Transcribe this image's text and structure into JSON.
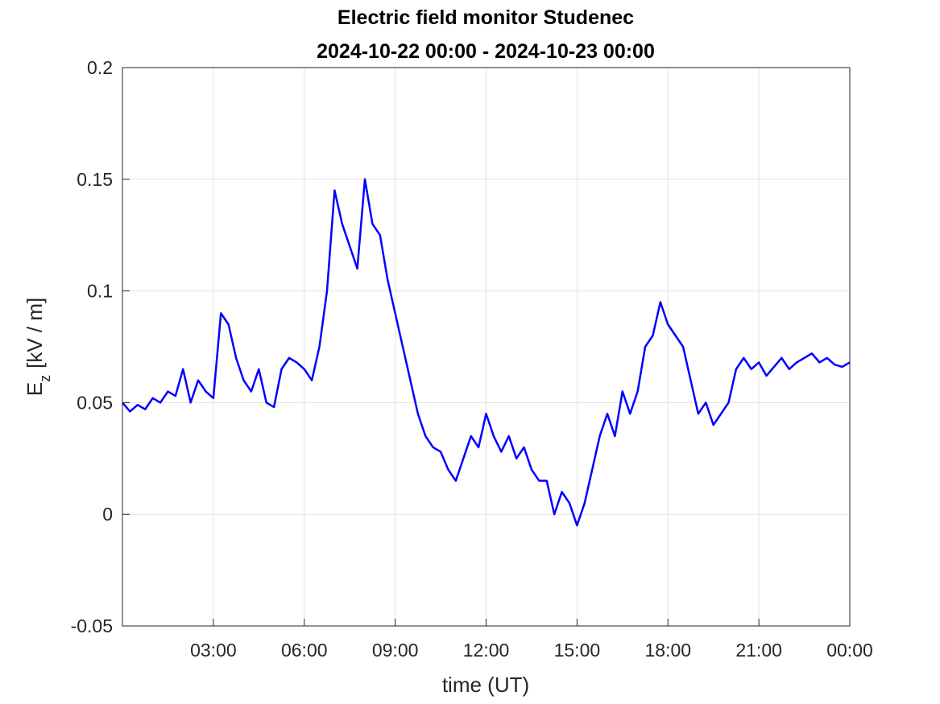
{
  "chart_data": {
    "type": "line",
    "title": "Electric field monitor Studenec",
    "subtitle": "2024-10-22 00:00 - 2024-10-23 00:00",
    "xlabel": "time (UT)",
    "ylabel": "E",
    "ylabel_sub": "z",
    "ylabel_unit": "[kV / m]",
    "x": [
      0,
      0.25,
      0.5,
      0.75,
      1,
      1.25,
      1.5,
      1.75,
      2,
      2.25,
      2.5,
      2.75,
      3,
      3.25,
      3.5,
      3.75,
      4,
      4.25,
      4.5,
      4.75,
      5,
      5.25,
      5.5,
      5.75,
      6,
      6.25,
      6.5,
      6.75,
      7,
      7.25,
      7.5,
      7.75,
      8,
      8.25,
      8.5,
      8.75,
      9,
      9.25,
      9.5,
      9.75,
      10,
      10.25,
      10.5,
      10.75,
      11,
      11.25,
      11.5,
      11.75,
      12,
      12.25,
      12.5,
      12.75,
      13,
      13.25,
      13.5,
      13.75,
      14,
      14.25,
      14.5,
      14.75,
      15,
      15.25,
      15.5,
      15.75,
      16,
      16.25,
      16.5,
      16.75,
      17,
      17.25,
      17.5,
      17.75,
      18,
      18.25,
      18.5,
      18.75,
      19,
      19.25,
      19.5,
      19.75,
      20,
      20.25,
      20.5,
      20.75,
      21,
      21.25,
      21.5,
      21.75,
      22,
      22.25,
      22.5,
      22.75,
      23,
      23.25,
      23.5,
      23.75,
      24
    ],
    "values": [
      0.05,
      0.046,
      0.049,
      0.047,
      0.052,
      0.05,
      0.055,
      0.053,
      0.065,
      0.05,
      0.06,
      0.055,
      0.052,
      0.09,
      0.085,
      0.07,
      0.06,
      0.055,
      0.065,
      0.05,
      0.048,
      0.065,
      0.07,
      0.068,
      0.065,
      0.06,
      0.075,
      0.1,
      0.145,
      0.13,
      0.12,
      0.11,
      0.15,
      0.13,
      0.125,
      0.105,
      0.09,
      0.075,
      0.06,
      0.045,
      0.035,
      0.03,
      0.028,
      0.02,
      0.015,
      0.025,
      0.035,
      0.03,
      0.045,
      0.035,
      0.028,
      0.035,
      0.025,
      0.03,
      0.02,
      0.015,
      0.015,
      0,
      0.01,
      0.005,
      -0.005,
      0.005,
      0.02,
      0.035,
      0.045,
      0.035,
      0.055,
      0.045,
      0.055,
      0.075,
      0.08,
      0.095,
      0.085,
      0.08,
      0.075,
      0.06,
      0.045,
      0.05,
      0.04,
      0.045,
      0.05,
      0.065,
      0.07,
      0.065,
      0.068,
      0.062,
      0.066,
      0.07,
      0.065,
      0.068,
      0.07,
      0.072,
      0.068,
      0.07,
      0.067,
      0.066,
      0.068
    ],
    "color": "#0000ff",
    "xlim": [
      0,
      24
    ],
    "xticks": [
      {
        "value": 3,
        "label": "03:00"
      },
      {
        "value": 6,
        "label": "06:00"
      },
      {
        "value": 9,
        "label": "09:00"
      },
      {
        "value": 12,
        "label": "12:00"
      },
      {
        "value": 15,
        "label": "15:00"
      },
      {
        "value": 18,
        "label": "18:00"
      },
      {
        "value": 21,
        "label": "21:00"
      },
      {
        "value": 24,
        "label": "00:00"
      }
    ],
    "ylim": [
      -0.05,
      0.2
    ],
    "yticks": [
      -0.05,
      0,
      0.05,
      0.1,
      0.15,
      0.2
    ],
    "grid": true
  }
}
